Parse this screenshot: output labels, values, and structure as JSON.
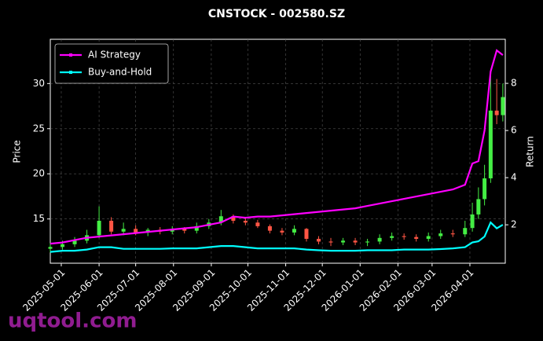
{
  "chart_data": {
    "type": "candlestick",
    "title": "CNSTOCK - 002580.SZ",
    "ylabel": "Price",
    "y2label": "Return",
    "watermark": "uqtool.com",
    "x": [
      "2025-04-22",
      "2025-05-02",
      "2025-05-12",
      "2025-05-22",
      "2025-06-01",
      "2025-06-11",
      "2025-06-21",
      "2025-07-01",
      "2025-07-11",
      "2025-07-21",
      "2025-07-31",
      "2025-08-10",
      "2025-08-20",
      "2025-08-30",
      "2025-09-09",
      "2025-09-19",
      "2025-09-29",
      "2025-10-09",
      "2025-10-19",
      "2025-10-29",
      "2025-11-08",
      "2025-11-18",
      "2025-11-28",
      "2025-12-08",
      "2025-12-18",
      "2025-12-28",
      "2026-01-07",
      "2026-01-17",
      "2026-01-27",
      "2026-02-06",
      "2026-02-16",
      "2026-02-26",
      "2026-03-08",
      "2026-03-18",
      "2026-03-28",
      "2026-04-03",
      "2026-04-08",
      "2026-04-13",
      "2026-04-18",
      "2026-04-23",
      "2026-04-28"
    ],
    "open": [
      11.7,
      11.9,
      12.2,
      12.6,
      13.2,
      14.8,
      13.6,
      13.9,
      13.5,
      13.8,
      13.6,
      13.9,
      13.7,
      14.2,
      14.6,
      15.3,
      14.8,
      14.6,
      14.2,
      13.7,
      13.5,
      13.9,
      12.8,
      12.5,
      12.4,
      12.6,
      12.4,
      12.5,
      12.9,
      13.1,
      13.0,
      12.8,
      13.1,
      13.4,
      13.3,
      14.0,
      15.5,
      17.2,
      19.5,
      27.0,
      26.5
    ],
    "high": [
      12.3,
      12.6,
      13.0,
      13.8,
      16.4,
      15.2,
      14.6,
      14.3,
      14.0,
      14.1,
      14.2,
      14.1,
      14.6,
      15.0,
      16.0,
      15.5,
      15.1,
      14.9,
      14.4,
      14.0,
      14.3,
      14.0,
      13.1,
      12.9,
      12.9,
      12.9,
      12.8,
      13.3,
      13.5,
      13.4,
      13.3,
      13.5,
      13.8,
      13.8,
      14.8,
      16.8,
      18.5,
      21.0,
      31.0,
      30.5,
      30.0
    ],
    "low": [
      11.3,
      11.6,
      11.9,
      12.3,
      12.9,
      13.3,
      13.2,
      13.2,
      13.1,
      13.3,
      13.3,
      13.4,
      13.4,
      13.9,
      14.3,
      14.5,
      14.3,
      14.0,
      13.4,
      13.2,
      13.2,
      12.5,
      12.2,
      12.0,
      12.1,
      12.1,
      12.0,
      12.2,
      12.6,
      12.7,
      12.5,
      12.5,
      12.8,
      13.0,
      13.0,
      13.6,
      15.0,
      16.5,
      19.0,
      25.5,
      25.8
    ],
    "close": [
      11.9,
      12.2,
      12.6,
      13.2,
      14.8,
      13.6,
      13.9,
      13.5,
      13.8,
      13.6,
      13.9,
      13.7,
      14.2,
      14.6,
      15.3,
      14.8,
      14.6,
      14.2,
      13.7,
      13.5,
      13.9,
      12.8,
      12.5,
      12.4,
      12.6,
      12.4,
      12.5,
      12.9,
      13.1,
      13.0,
      12.8,
      13.1,
      13.4,
      13.3,
      14.0,
      15.5,
      17.2,
      19.5,
      27.0,
      26.5,
      28.5
    ],
    "up_color": "#44ee44",
    "down_color": "#ff5544",
    "series": [
      {
        "name": "AI Strategy",
        "color": "#ff00ff",
        "axis": "y2",
        "values": [
          1.2,
          1.25,
          1.35,
          1.45,
          1.5,
          1.55,
          1.6,
          1.65,
          1.7,
          1.75,
          1.8,
          1.85,
          1.9,
          2.0,
          2.1,
          2.35,
          2.3,
          2.35,
          2.35,
          2.4,
          2.45,
          2.5,
          2.55,
          2.6,
          2.65,
          2.7,
          2.8,
          2.9,
          3.0,
          3.1,
          3.2,
          3.3,
          3.4,
          3.5,
          3.7,
          4.6,
          4.7,
          6.0,
          8.5,
          9.4,
          9.2
        ]
      },
      {
        "name": "Buy-and-Hold",
        "color": "#00ffff",
        "axis": "y2",
        "values": [
          0.85,
          0.9,
          0.9,
          0.95,
          1.05,
          1.05,
          0.98,
          0.98,
          0.98,
          0.98,
          1.0,
          1.0,
          1.0,
          1.05,
          1.1,
          1.1,
          1.05,
          1.0,
          1.0,
          1.0,
          1.0,
          0.95,
          0.92,
          0.9,
          0.9,
          0.9,
          0.92,
          0.92,
          0.92,
          0.95,
          0.95,
          0.95,
          0.97,
          1.0,
          1.05,
          1.25,
          1.3,
          1.5,
          2.1,
          1.85,
          2.0
        ]
      }
    ],
    "xlim": [
      "2025-04-22",
      "2026-04-30"
    ],
    "xticks": [
      "2025-05-01",
      "2025-06-01",
      "2025-07-01",
      "2025-08-01",
      "2025-09-01",
      "2025-10-01",
      "2025-11-01",
      "2025-12-01",
      "2026-01-01",
      "2026-02-01",
      "2026-03-01",
      "2026-04-01"
    ],
    "ylim": [
      10.1,
      34.9
    ],
    "yticks": [
      15,
      20,
      25,
      30
    ],
    "y2lim": [
      0.37,
      9.87
    ],
    "y2ticks": [
      2,
      4,
      6,
      8
    ],
    "grid": true,
    "legend": "upper left"
  }
}
